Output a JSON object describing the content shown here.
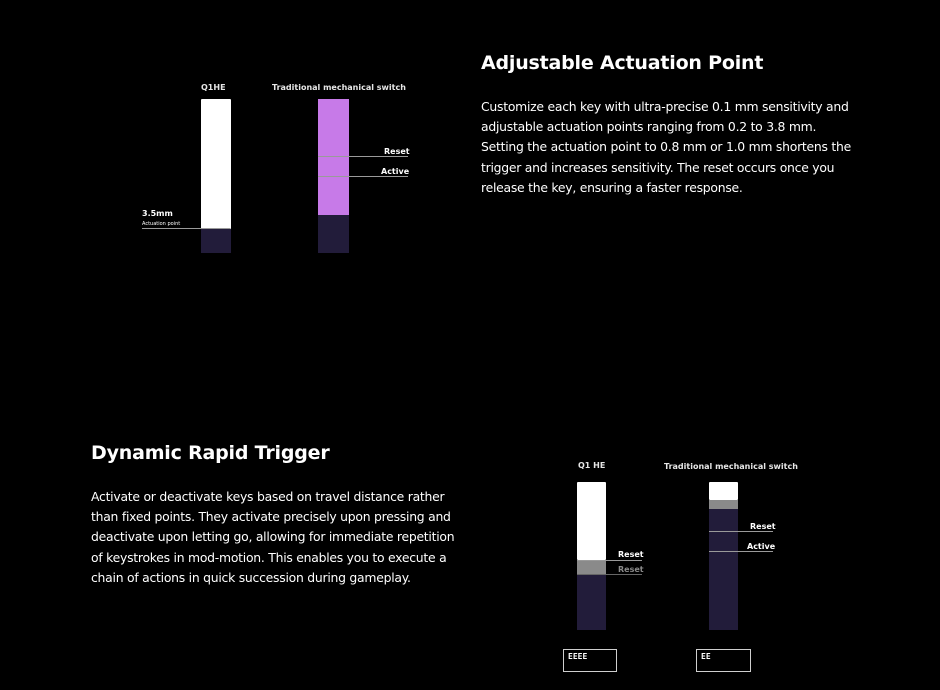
{
  "section1": {
    "title": "Adjustable Actuation Point",
    "body": "Customize each key with ultra-precise 0.1 mm sensitivity and adjustable actuation points ranging from 0.2 to 3.8 mm. Setting the actuation point to 0.8 mm or 1.0 mm shortens the trigger and increases sensitivity. The reset occurs once you release the key, ensuring a faster response.",
    "diagram": {
      "q1he_label": "Q1HE",
      "trad_label": "Traditional mechanical switch",
      "mm_label": "3.5mm",
      "actuation_label": "Actuation point",
      "reset_label": "Reset",
      "active_label": "Active"
    }
  },
  "section2": {
    "title": "Dynamic Rapid Trigger",
    "body": "Activate or deactivate keys based on travel distance rather than fixed points. They activate precisely upon pressing and deactivate upon letting go, allowing for immediate repetition of keystrokes in mod-motion. This enables you to execute a chain of actions in quick succession during gameplay.",
    "diagram": {
      "q1he_label": "Q1 HE",
      "trad_label": "Traditional mechanical switch",
      "reset_label_1": "Reset",
      "reset_label_2": "Reset",
      "reset_label_3": "Reset",
      "active_label": "Active",
      "q1he_box_text": "EEEE",
      "trad_box_text": "EE"
    }
  },
  "colors": {
    "background": "#000000",
    "white_key": "#ffffff",
    "purple_key": "#c77ae8",
    "dark_key": "#221c3a",
    "gray_band": "#8a8a8a"
  }
}
